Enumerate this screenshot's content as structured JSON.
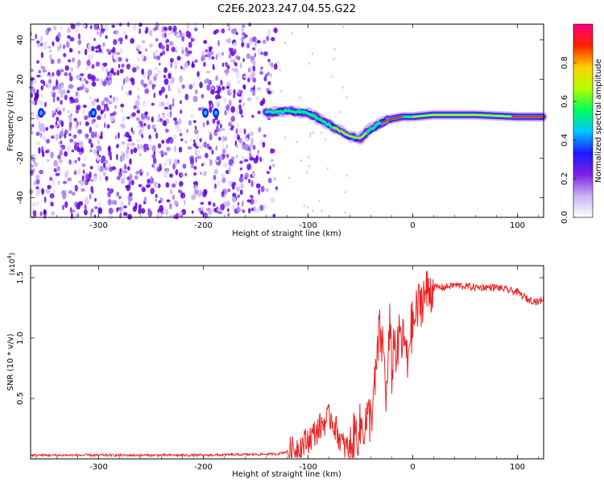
{
  "title": "C2E6.2023.247.04.55.G22",
  "chart_data": [
    {
      "type": "heatmap",
      "xlabel": "Height of straight line (km)",
      "ylabel": "Frequency (Hz)",
      "xlim": [
        -365,
        125
      ],
      "ylim": [
        -50,
        48
      ],
      "xticks": [
        -300,
        -200,
        -100,
        0,
        100
      ],
      "yticks": [
        -40,
        -20,
        0,
        20,
        40
      ],
      "colorbar": {
        "label": "Normalized spectral amplitude",
        "range": [
          0.0,
          1.0
        ],
        "ticks": [
          0.0,
          0.2,
          0.4,
          0.6,
          0.8
        ],
        "tick_labels": [
          "0.0",
          "0.2",
          "0.4",
          "0.6",
          "0.8"
        ],
        "colormap": [
          "#ffffff",
          "#c9b3f3",
          "#7e1fe6",
          "#1a1aff",
          "#00c8ff",
          "#00ff5a",
          "#b4ff00",
          "#ffd000",
          "#ff2000",
          "#ff0080"
        ]
      },
      "signal_track": [
        {
          "x": -362,
          "f": 3
        },
        {
          "x": -300,
          "f": 3
        },
        {
          "x": -200,
          "f": 3
        },
        {
          "x": -140,
          "f": 3
        },
        {
          "x": -120,
          "f": 4
        },
        {
          "x": -100,
          "f": 3
        },
        {
          "x": -90,
          "f": 0
        },
        {
          "x": -80,
          "f": -3
        },
        {
          "x": -70,
          "f": -6
        },
        {
          "x": -60,
          "f": -9
        },
        {
          "x": -50,
          "f": -10
        },
        {
          "x": -40,
          "f": -5
        },
        {
          "x": -30,
          "f": -2
        },
        {
          "x": -20,
          "f": 0
        },
        {
          "x": -10,
          "f": 1
        },
        {
          "x": 0,
          "f": 1
        },
        {
          "x": 20,
          "f": 2
        },
        {
          "x": 60,
          "f": 2
        },
        {
          "x": 100,
          "f": 1
        },
        {
          "x": 125,
          "f": 1
        }
      ],
      "noise_extent_x": [
        -365,
        -130
      ]
    },
    {
      "type": "line",
      "xlabel": "Height of straight line (km)",
      "ylabel": "SNR (10 * v/v)",
      "y_multiplier": "(x10",
      "y_multiplier_exp": "4",
      "xlim": [
        -365,
        125
      ],
      "ylim": [
        0,
        1.6
      ],
      "xticks": [
        -300,
        -200,
        -100,
        0,
        100
      ],
      "yticks": [
        0.5,
        1.0,
        1.5
      ],
      "ytick_labels": [
        "0.5",
        "1.0",
        "1.5"
      ],
      "color": "#ee2222",
      "series": [
        {
          "x": [
            -365,
            -300,
            -200,
            -130,
            -115,
            -105,
            -95,
            -85,
            -78,
            -72,
            -66,
            -60,
            -55,
            -50,
            -45,
            -40,
            -36,
            -32,
            -28,
            -25,
            -22,
            -20,
            -18,
            -15,
            -12,
            -10,
            -8,
            -5,
            -3,
            0,
            5,
            10,
            20,
            30,
            40,
            60,
            80,
            100,
            110,
            120,
            125
          ],
          "y": [
            0.03,
            0.03,
            0.03,
            0.04,
            0.07,
            0.12,
            0.2,
            0.3,
            0.35,
            0.22,
            0.1,
            0.08,
            0.2,
            0.25,
            0.3,
            0.35,
            0.6,
            1.05,
            0.9,
            0.5,
            1.1,
            0.7,
            1.0,
            0.85,
            1.05,
            0.95,
            1.0,
            0.75,
            1.05,
            1.1,
            1.25,
            1.35,
            1.42,
            1.42,
            1.44,
            1.42,
            1.42,
            1.38,
            1.32,
            1.3,
            1.33
          ]
        }
      ]
    }
  ]
}
